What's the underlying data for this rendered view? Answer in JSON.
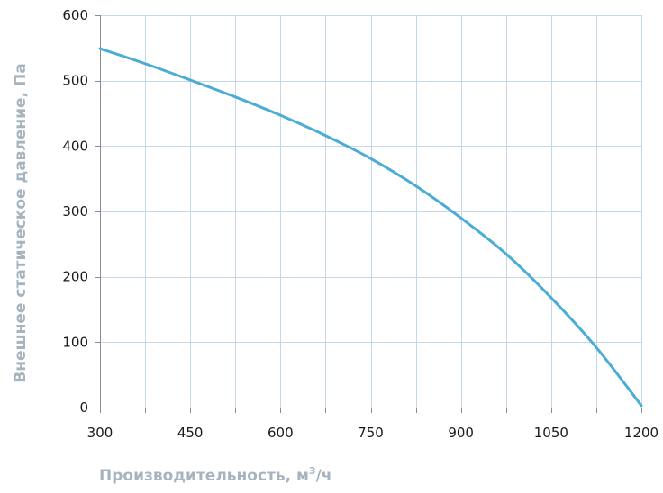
{
  "chart_data": {
    "type": "line",
    "title": "",
    "xlabel_main": "Производительность, м",
    "xlabel_sup": "3",
    "xlabel_tail": "/ч",
    "ylabel": "Внешнее статическое давление, Па",
    "xlim": [
      300,
      1200
    ],
    "ylim": [
      0,
      600
    ],
    "x_ticks": [
      300,
      450,
      600,
      750,
      900,
      1050,
      1200
    ],
    "y_ticks": [
      0,
      100,
      200,
      300,
      400,
      500,
      600
    ],
    "x_minor_step": 75,
    "grid": true,
    "series": [
      {
        "line_color": "#4bacd6",
        "x": [
          300,
          375,
          450,
          525,
          600,
          675,
          750,
          825,
          900,
          975,
          1050,
          1125,
          1200
        ],
        "y": [
          549,
          526,
          501,
          475,
          447,
          416,
          381,
          339,
          290,
          235,
          168,
          92,
          3
        ]
      }
    ],
    "colors": {
      "grid": "#c4d8ec",
      "axis": "#8c8c8c",
      "tick_text": "#1a1a1a",
      "axis_title": "#a6b4c0",
      "background": "#ffffff"
    }
  }
}
